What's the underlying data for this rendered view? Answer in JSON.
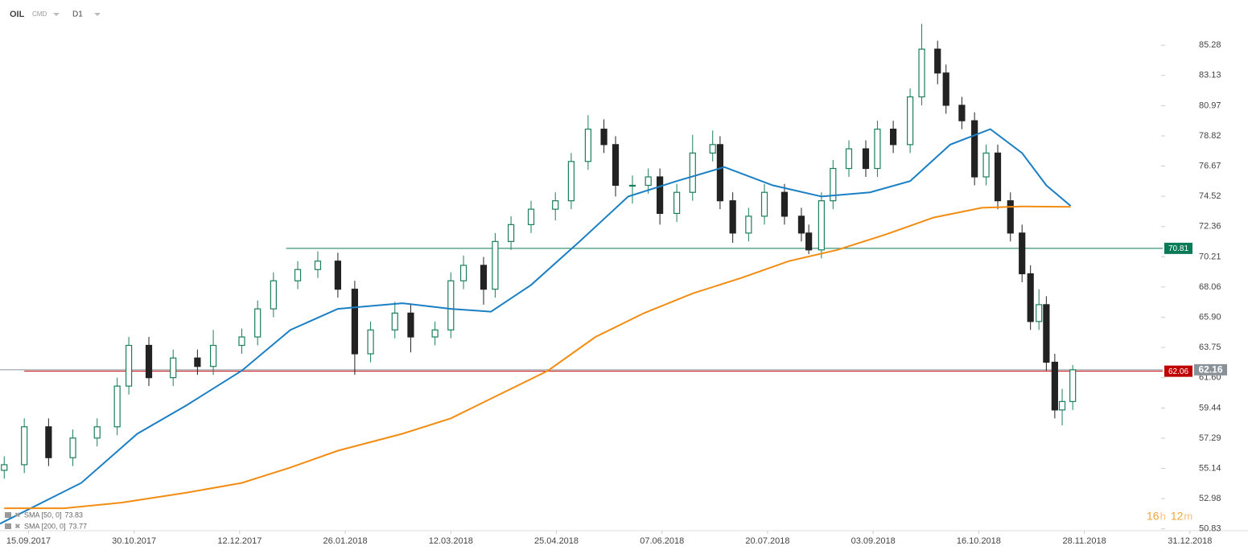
{
  "header": {
    "symbol": "OIL",
    "market": "CMD",
    "interval": "D1"
  },
  "chart_data": {
    "type": "candlestick",
    "xlim": [
      -0.27,
      11.55
    ],
    "ylim": [
      50.7,
      88.5
    ],
    "xticks": [
      {
        "value": 0,
        "label": "15.09.2017"
      },
      {
        "value": 1,
        "label": "30.10.2017"
      },
      {
        "value": 2,
        "label": "12.12.2017"
      },
      {
        "value": 3,
        "label": "26.01.2018"
      },
      {
        "value": 4,
        "label": "12.03.2018"
      },
      {
        "value": 5,
        "label": "25.04.2018"
      },
      {
        "value": 6,
        "label": "07.06.2018"
      },
      {
        "value": 7,
        "label": "20.07.2018"
      },
      {
        "value": 8,
        "label": "03.09.2018"
      },
      {
        "value": 9,
        "label": "16.10.2018"
      },
      {
        "value": 10,
        "label": "28.11.2018"
      },
      {
        "value": 11,
        "label": "31.12.2018"
      }
    ],
    "yticks": [
      50.83,
      52.98,
      55.14,
      57.29,
      59.44,
      {
        "value": 61.6,
        "label": "61.60"
      },
      63.75,
      {
        "value": 65.9,
        "label": "65.90"
      },
      68.06,
      70.21,
      72.36,
      74.52,
      76.67,
      78.82,
      80.97,
      83.13,
      85.28
    ],
    "up_color": "#1a7f5a",
    "down_color": "#222222",
    "x": [
      -0.23,
      -0.04,
      0.19,
      0.42,
      0.65,
      0.84,
      0.95,
      1.14,
      1.37,
      1.6,
      1.75,
      2.02,
      2.17,
      2.32,
      2.55,
      2.74,
      2.93,
      3.09,
      3.24,
      3.47,
      3.62,
      3.85,
      4.0,
      4.12,
      4.31,
      4.42,
      4.57,
      4.76,
      4.99,
      5.14,
      5.3,
      5.45,
      5.56,
      5.72,
      5.87,
      5.98,
      6.14,
      6.29,
      6.48,
      6.55,
      6.67,
      6.82,
      6.97,
      7.16,
      7.32,
      7.39,
      7.51,
      7.62,
      7.77,
      7.93,
      8.04,
      8.19,
      8.35,
      8.46,
      8.61,
      8.69,
      8.84,
      8.96,
      9.07,
      9.18,
      9.3,
      9.41,
      9.49,
      9.57,
      9.64,
      9.72,
      9.79,
      9.89
    ],
    "open": [
      55.0,
      55.4,
      58.1,
      55.9,
      57.3,
      58.1,
      61.0,
      63.9,
      61.6,
      63.0,
      62.4,
      63.9,
      64.5,
      66.5,
      68.5,
      69.3,
      69.9,
      67.9,
      63.3,
      65.0,
      66.2,
      64.5,
      65.0,
      68.5,
      69.6,
      67.9,
      71.3,
      72.5,
      73.6,
      74.2,
      77.0,
      79.3,
      78.2,
      75.3,
      75.3,
      75.9,
      73.3,
      74.8,
      77.6,
      78.2,
      74.2,
      71.9,
      73.1,
      74.8,
      73.1,
      71.9,
      70.7,
      74.2,
      76.5,
      77.9,
      76.5,
      79.3,
      78.2,
      81.6,
      85.0,
      83.3,
      81.0,
      79.9,
      75.9,
      77.6,
      74.2,
      71.9,
      69.0,
      65.6,
      66.8,
      62.7,
      59.3,
      59.9
    ],
    "high": [
      56.0,
      58.7,
      58.7,
      57.9,
      58.7,
      61.6,
      64.5,
      64.5,
      63.6,
      63.6,
      65.0,
      65.1,
      67.1,
      69.1,
      69.9,
      70.6,
      70.5,
      68.5,
      65.6,
      67.0,
      66.8,
      65.6,
      69.1,
      70.3,
      70.2,
      71.9,
      73.1,
      74.2,
      74.8,
      77.6,
      80.3,
      80.0,
      78.8,
      76.0,
      76.5,
      76.5,
      75.4,
      78.9,
      79.2,
      78.8,
      74.8,
      73.7,
      75.4,
      75.4,
      73.7,
      72.5,
      74.8,
      77.1,
      78.5,
      78.5,
      79.9,
      79.9,
      82.2,
      86.8,
      85.6,
      83.9,
      81.6,
      80.5,
      78.2,
      78.2,
      74.8,
      72.5,
      69.6,
      67.9,
      67.4,
      63.3,
      60.8,
      62.5
    ],
    "low": [
      54.4,
      54.8,
      55.3,
      55.3,
      56.7,
      57.5,
      60.4,
      61.0,
      61.0,
      61.8,
      61.8,
      63.3,
      63.9,
      65.9,
      67.9,
      68.7,
      67.3,
      61.8,
      62.7,
      64.4,
      63.4,
      63.9,
      64.4,
      67.9,
      66.8,
      67.3,
      70.7,
      71.9,
      72.8,
      73.6,
      76.4,
      77.6,
      74.5,
      74.0,
      74.7,
      72.5,
      72.7,
      74.2,
      77.0,
      73.6,
      71.2,
      71.3,
      72.5,
      72.5,
      71.3,
      70.4,
      70.1,
      73.6,
      75.9,
      75.9,
      75.9,
      77.6,
      77.6,
      81.0,
      82.5,
      80.4,
      79.3,
      75.3,
      75.3,
      73.6,
      71.3,
      68.4,
      65.0,
      65.0,
      62.1,
      58.7,
      58.2,
      59.3
    ],
    "close": [
      55.4,
      58.1,
      55.9,
      57.3,
      58.1,
      61.0,
      63.9,
      61.6,
      63.0,
      62.4,
      63.9,
      64.5,
      66.5,
      68.5,
      69.3,
      69.9,
      67.9,
      63.3,
      65.0,
      66.2,
      64.5,
      65.0,
      68.5,
      69.6,
      67.9,
      71.3,
      72.5,
      73.6,
      74.2,
      77.0,
      79.3,
      78.2,
      75.3,
      75.3,
      75.9,
      73.3,
      74.8,
      77.6,
      78.2,
      74.2,
      71.9,
      73.1,
      74.8,
      73.1,
      71.9,
      70.7,
      74.2,
      76.5,
      77.9,
      76.5,
      79.3,
      78.2,
      81.6,
      85.0,
      83.3,
      81.0,
      79.9,
      75.9,
      77.6,
      74.2,
      71.9,
      69.0,
      65.6,
      66.8,
      62.7,
      59.3,
      59.9,
      62.16
    ],
    "indicators": [
      {
        "name": "SMA [50, 0]",
        "value": 73.83,
        "color": "#1b7fc4",
        "x": [
          -0.27,
          0.5,
          1.03,
          1.49,
          2.02,
          2.48,
          2.93,
          3.54,
          4.0,
          4.38,
          4.76,
          5.22,
          5.68,
          6.14,
          6.59,
          7.05,
          7.51,
          7.97,
          8.35,
          8.73,
          9.11,
          9.41,
          9.64,
          9.87
        ],
        "values": [
          51.2,
          54.1,
          57.6,
          59.6,
          62.1,
          65.0,
          66.5,
          66.9,
          66.5,
          66.3,
          68.2,
          71.3,
          74.5,
          75.6,
          76.6,
          75.3,
          74.5,
          74.8,
          75.6,
          78.2,
          79.3,
          77.6,
          75.3,
          73.83
        ]
      },
      {
        "name": "SMA [200, 0]",
        "value": 73.77,
        "color": "#f28c12",
        "x": [
          -0.23,
          0.34,
          0.88,
          1.49,
          2.02,
          2.48,
          2.93,
          3.54,
          4.0,
          4.46,
          4.92,
          5.37,
          5.83,
          6.29,
          6.75,
          7.2,
          7.66,
          8.12,
          8.57,
          9.03,
          9.41,
          9.87
        ],
        "values": [
          52.3,
          52.3,
          52.7,
          53.4,
          54.1,
          55.2,
          56.4,
          57.6,
          58.7,
          60.4,
          62.1,
          64.5,
          66.2,
          67.6,
          68.7,
          69.9,
          70.7,
          71.8,
          73.0,
          73.7,
          73.8,
          73.77
        ]
      }
    ],
    "levels": [
      {
        "value": 70.81,
        "from": 2.44,
        "color": "#0b7a56"
      },
      {
        "value": 62.06,
        "from": -0.04,
        "color": "#c00000"
      },
      {
        "value": 62.16,
        "from": -0.27,
        "color": "#8a9299"
      }
    ],
    "countdown": {
      "hours": 16,
      "hours_unit": "h",
      "minutes": 12,
      "minutes_unit": "m"
    }
  }
}
